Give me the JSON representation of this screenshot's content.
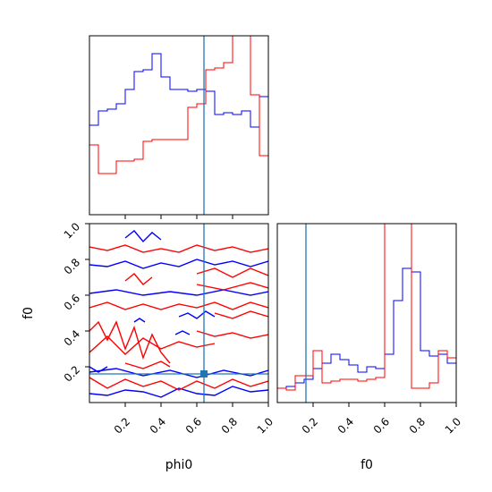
{
  "chart_data": [
    {
      "panel": "phi0-marginal",
      "type": "step",
      "xlim": [
        0.0,
        1.0
      ],
      "truth": {
        "x": 0.64,
        "color": "#1f77b4"
      },
      "bin_edges": [
        0.0,
        0.05,
        0.1,
        0.15,
        0.2,
        0.25,
        0.3,
        0.35,
        0.4,
        0.45,
        0.5,
        0.55,
        0.6,
        0.65,
        0.7,
        0.75,
        0.8,
        0.85,
        0.9,
        0.95,
        1.0
      ],
      "ylim": [
        0,
        100
      ],
      "series": [
        {
          "color": "#0000ff",
          "values": [
            50,
            58,
            59,
            62,
            70,
            80,
            81,
            90,
            77,
            70,
            70,
            69,
            70,
            69,
            56,
            57,
            56,
            58,
            49,
            66
          ]
        },
        {
          "color": "#ff0000",
          "values": [
            39,
            23,
            23,
            30,
            30,
            31,
            41,
            42,
            42,
            42,
            42,
            60,
            62,
            81,
            82,
            85,
            105,
            120,
            67,
            33
          ]
        }
      ]
    },
    {
      "panel": "phi0-f0-joint",
      "type": "contour",
      "xlim": [
        0.0,
        1.0
      ],
      "ylim": [
        0.0,
        1.0
      ],
      "xlabel": "phi0",
      "ylabel": "f0",
      "xticks": [
        "0.2",
        "0.4",
        "0.6",
        "0.8",
        "1.0"
      ],
      "yticks": [
        "0.2",
        "0.4",
        "0.6",
        "0.8",
        "1.0"
      ],
      "truth": {
        "x": 0.64,
        "y": 0.16,
        "color": "#1f77b4"
      },
      "contours": [
        {
          "color": "#0000ff",
          "points": [
            [
              0.0,
              0.05
            ],
            [
              0.1,
              0.04
            ],
            [
              0.2,
              0.07
            ],
            [
              0.3,
              0.06
            ],
            [
              0.4,
              0.03
            ],
            [
              0.5,
              0.08
            ],
            [
              0.6,
              0.05
            ],
            [
              0.7,
              0.04
            ],
            [
              0.8,
              0.09
            ],
            [
              0.9,
              0.06
            ],
            [
              1.0,
              0.07
            ]
          ]
        },
        {
          "color": "#0000ff",
          "points": [
            [
              0.0,
              0.17
            ],
            [
              0.15,
              0.19
            ],
            [
              0.3,
              0.15
            ],
            [
              0.45,
              0.18
            ],
            [
              0.6,
              0.14
            ],
            [
              0.75,
              0.18
            ],
            [
              0.9,
              0.15
            ],
            [
              1.0,
              0.18
            ]
          ]
        },
        {
          "color": "#0000ff",
          "points": [
            [
              0.0,
              0.61
            ],
            [
              0.15,
              0.63
            ],
            [
              0.3,
              0.6
            ],
            [
              0.45,
              0.62
            ],
            [
              0.6,
              0.6
            ],
            [
              0.75,
              0.63
            ],
            [
              0.9,
              0.6
            ],
            [
              1.0,
              0.62
            ]
          ]
        },
        {
          "color": "#0000ff",
          "points": [
            [
              0.0,
              0.77
            ],
            [
              0.1,
              0.76
            ],
            [
              0.2,
              0.79
            ],
            [
              0.3,
              0.75
            ],
            [
              0.4,
              0.78
            ],
            [
              0.5,
              0.76
            ],
            [
              0.6,
              0.8
            ],
            [
              0.7,
              0.77
            ],
            [
              0.8,
              0.79
            ],
            [
              0.9,
              0.76
            ],
            [
              1.0,
              0.79
            ]
          ]
        },
        {
          "color": "#0000ff",
          "points": [
            [
              0.2,
              0.92
            ],
            [
              0.25,
              0.96
            ],
            [
              0.3,
              0.9
            ],
            [
              0.35,
              0.95
            ],
            [
              0.4,
              0.91
            ]
          ]
        },
        {
          "color": "#0000ff",
          "points": [
            [
              0.5,
              0.48
            ],
            [
              0.55,
              0.5
            ],
            [
              0.6,
              0.47
            ],
            [
              0.65,
              0.51
            ],
            [
              0.7,
              0.48
            ]
          ]
        },
        {
          "color": "#0000ff",
          "points": [
            [
              0.25,
              0.45
            ],
            [
              0.28,
              0.47
            ],
            [
              0.31,
              0.45
            ]
          ]
        },
        {
          "color": "#0000ff",
          "points": [
            [
              0.48,
              0.38
            ],
            [
              0.52,
              0.4
            ],
            [
              0.56,
              0.38
            ]
          ]
        },
        {
          "color": "#0000ff",
          "points": [
            [
              0.0,
              0.2
            ],
            [
              0.05,
              0.17
            ],
            [
              0.1,
              0.2
            ]
          ]
        },
        {
          "color": "#ff0000",
          "points": [
            [
              0.0,
              0.14
            ],
            [
              0.1,
              0.08
            ],
            [
              0.2,
              0.13
            ],
            [
              0.3,
              0.09
            ],
            [
              0.4,
              0.12
            ],
            [
              0.5,
              0.07
            ],
            [
              0.6,
              0.12
            ],
            [
              0.7,
              0.08
            ],
            [
              0.8,
              0.13
            ],
            [
              0.9,
              0.09
            ],
            [
              1.0,
              0.12
            ]
          ]
        },
        {
          "color": "#ff0000",
          "points": [
            [
              0.0,
              0.4
            ],
            [
              0.05,
              0.45
            ],
            [
              0.1,
              0.35
            ],
            [
              0.15,
              0.45
            ],
            [
              0.2,
              0.3
            ],
            [
              0.25,
              0.42
            ],
            [
              0.3,
              0.25
            ],
            [
              0.35,
              0.38
            ],
            [
              0.4,
              0.28
            ],
            [
              0.45,
              0.22
            ]
          ]
        },
        {
          "color": "#ff0000",
          "points": [
            [
              0.0,
              0.28
            ],
            [
              0.1,
              0.37
            ],
            [
              0.2,
              0.27
            ],
            [
              0.3,
              0.36
            ],
            [
              0.4,
              0.3
            ],
            [
              0.5,
              0.34
            ],
            [
              0.6,
              0.31
            ],
            [
              0.7,
              0.33
            ]
          ]
        },
        {
          "color": "#ff0000",
          "points": [
            [
              0.0,
              0.87
            ],
            [
              0.1,
              0.85
            ],
            [
              0.2,
              0.88
            ],
            [
              0.3,
              0.84
            ],
            [
              0.4,
              0.86
            ],
            [
              0.5,
              0.84
            ],
            [
              0.6,
              0.88
            ],
            [
              0.7,
              0.85
            ],
            [
              0.8,
              0.87
            ],
            [
              0.9,
              0.84
            ],
            [
              1.0,
              0.86
            ]
          ]
        },
        {
          "color": "#ff0000",
          "points": [
            [
              0.0,
              0.53
            ],
            [
              0.1,
              0.56
            ],
            [
              0.2,
              0.52
            ],
            [
              0.3,
              0.55
            ],
            [
              0.4,
              0.52
            ],
            [
              0.5,
              0.55
            ],
            [
              0.6,
              0.53
            ],
            [
              0.7,
              0.56
            ],
            [
              0.8,
              0.52
            ],
            [
              0.9,
              0.56
            ],
            [
              1.0,
              0.53
            ]
          ]
        },
        {
          "color": "#ff0000",
          "points": [
            [
              0.6,
              0.72
            ],
            [
              0.7,
              0.75
            ],
            [
              0.8,
              0.7
            ],
            [
              0.9,
              0.75
            ],
            [
              1.0,
              0.71
            ]
          ]
        },
        {
          "color": "#ff0000",
          "points": [
            [
              0.6,
              0.66
            ],
            [
              0.75,
              0.63
            ],
            [
              0.9,
              0.67
            ],
            [
              1.0,
              0.64
            ]
          ]
        },
        {
          "color": "#ff0000",
          "points": [
            [
              0.2,
              0.68
            ],
            [
              0.25,
              0.72
            ],
            [
              0.3,
              0.66
            ],
            [
              0.35,
              0.7
            ]
          ]
        },
        {
          "color": "#ff0000",
          "points": [
            [
              0.6,
              0.4
            ],
            [
              0.7,
              0.37
            ],
            [
              0.8,
              0.39
            ],
            [
              0.9,
              0.36
            ],
            [
              1.0,
              0.38
            ]
          ]
        },
        {
          "color": "#ff0000",
          "points": [
            [
              0.7,
              0.5
            ],
            [
              0.8,
              0.47
            ],
            [
              0.9,
              0.51
            ],
            [
              1.0,
              0.48
            ]
          ]
        },
        {
          "color": "#ff0000",
          "points": [
            [
              0.2,
              0.22
            ],
            [
              0.3,
              0.19
            ],
            [
              0.4,
              0.23
            ],
            [
              0.45,
              0.2
            ]
          ]
        }
      ]
    },
    {
      "panel": "f0-marginal",
      "type": "step",
      "xlim": [
        0.0,
        1.0
      ],
      "xlabel": "f0",
      "xticks": [
        "0.2",
        "0.4",
        "0.6",
        "0.8",
        "1.0"
      ],
      "truth": {
        "x": 0.16,
        "color": "#1f77b4"
      },
      "bin_edges": [
        0.0,
        0.05,
        0.1,
        0.15,
        0.2,
        0.25,
        0.3,
        0.35,
        0.4,
        0.45,
        0.5,
        0.55,
        0.6,
        0.65,
        0.7,
        0.75,
        0.8,
        0.85,
        0.9,
        0.95,
        1.0
      ],
      "ylim": [
        0,
        100
      ],
      "series": [
        {
          "color": "#0000ff",
          "values": [
            8,
            9,
            11,
            13,
            19,
            22,
            27,
            24,
            21,
            17,
            20,
            19,
            27,
            57,
            75,
            73,
            29,
            26,
            27,
            22
          ]
        },
        {
          "color": "#ff0000",
          "values": [
            8,
            7,
            15,
            15,
            29,
            11,
            12,
            13,
            13,
            12,
            13,
            14,
            105,
            105,
            105,
            8,
            8,
            11,
            29,
            25
          ]
        }
      ]
    }
  ]
}
